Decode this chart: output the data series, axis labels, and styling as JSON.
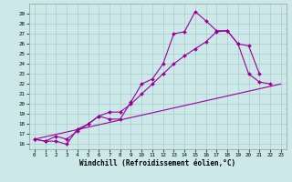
{
  "xlabel": "Windchill (Refroidissement éolien,°C)",
  "bg_color": "#cce8e8",
  "grid_color": "#aacccc",
  "line_color": "#990099",
  "xlim": [
    -0.5,
    23.5
  ],
  "ylim": [
    15.5,
    30.0
  ],
  "xticks": [
    0,
    1,
    2,
    3,
    4,
    5,
    6,
    7,
    8,
    9,
    10,
    11,
    12,
    13,
    14,
    15,
    16,
    17,
    18,
    19,
    20,
    21,
    22,
    23
  ],
  "yticks": [
    16,
    17,
    18,
    19,
    20,
    21,
    22,
    23,
    24,
    25,
    26,
    27,
    28,
    29
  ],
  "series1_x": [
    0,
    1,
    2,
    3,
    4,
    5,
    6,
    7,
    8,
    9,
    10,
    11,
    12,
    13,
    14,
    15,
    16,
    17,
    18,
    19,
    20,
    21,
    22
  ],
  "series1_y": [
    16.5,
    16.3,
    16.3,
    16.0,
    17.5,
    18.0,
    18.8,
    18.5,
    18.5,
    20.2,
    22.0,
    22.5,
    24.0,
    27.0,
    27.2,
    29.2,
    28.3,
    27.3,
    27.3,
    26.0,
    23.0,
    22.2,
    22.0
  ],
  "series2_x": [
    0,
    1,
    2,
    3,
    4,
    5,
    6,
    7,
    8,
    9,
    10,
    11,
    12,
    13,
    14,
    15,
    16,
    17,
    18,
    19,
    20,
    21
  ],
  "series2_y": [
    16.5,
    16.3,
    16.8,
    16.5,
    17.3,
    18.0,
    18.8,
    19.2,
    19.2,
    20.0,
    21.0,
    22.0,
    23.0,
    24.0,
    24.8,
    25.5,
    26.2,
    27.2,
    27.3,
    26.0,
    25.8,
    23.0
  ],
  "series3_x": [
    0,
    23
  ],
  "series3_y": [
    16.5,
    22.0
  ]
}
